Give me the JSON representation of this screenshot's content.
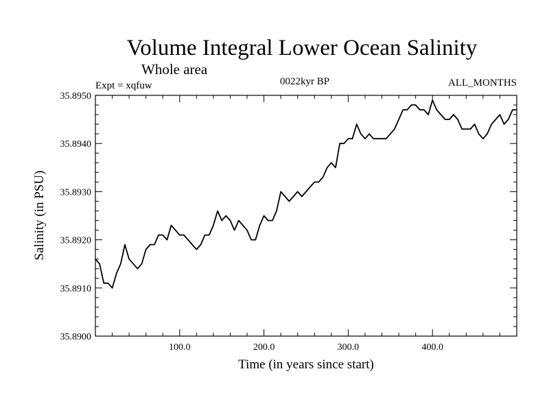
{
  "chart_data": {
    "type": "line",
    "title": "Volume Integral Lower Ocean Salinity",
    "subtitle": "Whole area",
    "experiment_label": "Expt = xqfuw",
    "period_label": "0022kyr BP",
    "months_label": "ALL_MONTHS",
    "xlabel": "Time (in years since start)",
    "ylabel": "Salinity (in PSU)",
    "xlim": [
      0,
      500
    ],
    "ylim": [
      35.89,
      35.895
    ],
    "x_ticks": [
      100,
      200,
      300,
      400
    ],
    "x_tick_labels": [
      "100.0",
      "200.0",
      "300.0",
      "400.0"
    ],
    "y_ticks": [
      35.89,
      35.891,
      35.892,
      35.893,
      35.894,
      35.895
    ],
    "y_tick_labels": [
      "35.8900",
      "35.8910",
      "35.8920",
      "35.8930",
      "35.8940",
      "35.8950"
    ],
    "grid": false,
    "series": [
      {
        "name": "Salinity",
        "color": "#000000",
        "x": [
          0,
          5,
          10,
          15,
          20,
          25,
          30,
          35,
          40,
          45,
          50,
          55,
          60,
          65,
          70,
          75,
          80,
          85,
          90,
          95,
          100,
          105,
          110,
          115,
          120,
          125,
          130,
          135,
          140,
          145,
          150,
          155,
          160,
          165,
          170,
          175,
          180,
          185,
          190,
          195,
          200,
          205,
          210,
          215,
          220,
          225,
          230,
          235,
          240,
          245,
          250,
          255,
          260,
          265,
          270,
          275,
          280,
          285,
          290,
          295,
          300,
          305,
          310,
          315,
          320,
          325,
          330,
          335,
          340,
          345,
          350,
          355,
          360,
          365,
          370,
          375,
          380,
          385,
          390,
          395,
          400,
          405,
          410,
          415,
          420,
          425,
          430,
          435,
          440,
          445,
          450,
          455,
          460,
          465,
          470,
          475,
          480,
          485,
          490,
          495,
          500
        ],
        "values": [
          35.8916,
          35.8915,
          35.8911,
          35.8911,
          35.891,
          35.8913,
          35.8915,
          35.8919,
          35.8916,
          35.8915,
          35.8914,
          35.8915,
          35.8918,
          35.8919,
          35.8919,
          35.8921,
          35.8921,
          35.892,
          35.8923,
          35.8922,
          35.8921,
          35.8921,
          35.892,
          35.8919,
          35.8918,
          35.8919,
          35.8921,
          35.8921,
          35.8923,
          35.8926,
          35.8924,
          35.8925,
          35.8924,
          35.8922,
          35.8924,
          35.8923,
          35.8922,
          35.892,
          35.892,
          35.8923,
          35.8925,
          35.8924,
          35.8924,
          35.8926,
          35.893,
          35.8929,
          35.8928,
          35.8929,
          35.893,
          35.8929,
          35.893,
          35.8931,
          35.8932,
          35.8932,
          35.8933,
          35.8935,
          35.8936,
          35.8935,
          35.894,
          35.894,
          35.8941,
          35.8941,
          35.8944,
          35.8942,
          35.8941,
          35.8942,
          35.8941,
          35.8941,
          35.8941,
          35.8941,
          35.8942,
          35.8943,
          35.8945,
          35.8947,
          35.8947,
          35.8948,
          35.8948,
          35.8947,
          35.8947,
          35.8946,
          35.8949,
          35.8947,
          35.8946,
          35.8945,
          35.8945,
          35.8946,
          35.8945,
          35.8943,
          35.8943,
          35.8943,
          35.8944,
          35.8942,
          35.8941,
          35.8942,
          35.8944,
          35.8945,
          35.8946,
          35.8944,
          35.8945,
          35.8947,
          35.8947
        ]
      }
    ]
  }
}
